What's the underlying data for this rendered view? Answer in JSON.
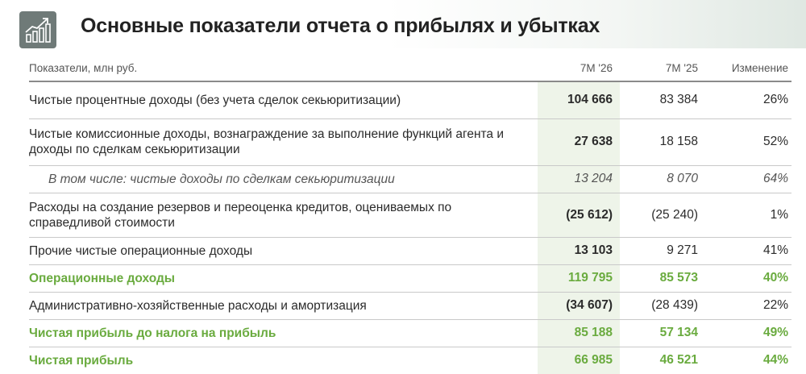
{
  "title": "Основные показатели отчета о прибылях и убытках",
  "icons": {
    "logo": "growth-chart-icon"
  },
  "colors": {
    "accent_green": "#6aab3f",
    "highlight_column": "#eef4e9",
    "logo_bg": "#6f7a78"
  },
  "table": {
    "headers": [
      "Показатели, млн руб.",
      "7М '26",
      "7М '25",
      "Изменение"
    ],
    "rows": [
      {
        "label": "Чистые процентные доходы (без учета сделок секьюритизации)",
        "v26": "104 666",
        "v25": "83 384",
        "change": "26%"
      },
      {
        "label": "Чистые комиссионные доходы, вознаграждение за выполнение функций агента и доходы по сделкам секьюритизации",
        "v26": "27 638",
        "v25": "18 158",
        "change": "52%"
      },
      {
        "label": "В том числе: чистые доходы по сделкам секьюритизации",
        "v26": "13 204",
        "v25": "8 070",
        "change": "64%"
      },
      {
        "label": "Расходы на создание резервов и переоценка кредитов, оцениваемых по справедливой стоимости",
        "v26": "(25 612)",
        "v25": "(25 240)",
        "change": "1%"
      },
      {
        "label": "Прочие чистые операционные доходы",
        "v26": "13 103",
        "v25": "9 271",
        "change": "41%"
      },
      {
        "label": "Операционные доходы",
        "v26": "119 795",
        "v25": "85 573",
        "change": "40%"
      },
      {
        "label": "Административно-хозяйственные расходы и амортизация",
        "v26": "(34 607)",
        "v25": "(28 439)",
        "change": "22%"
      },
      {
        "label": "Чистая прибыль до налога на прибыль",
        "v26": "85 188",
        "v25": "57 134",
        "change": "49%"
      },
      {
        "label": "Чистая прибыль",
        "v26": "66 985",
        "v25": "46 521",
        "change": "44%"
      }
    ]
  }
}
